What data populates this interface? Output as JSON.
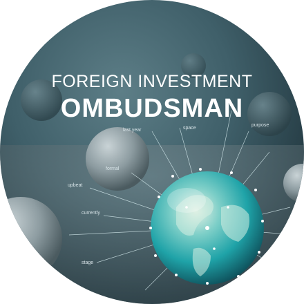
{
  "title": {
    "line1": "FOREIGN INVESTMENT",
    "line2": "OMBUDSMAN"
  },
  "network_labels": {
    "last_year": "last year",
    "space": "space",
    "purpose": "purpose",
    "formal": "formal",
    "upbeat": "upbeat",
    "currently": "currently",
    "stage": "stage"
  },
  "colors": {
    "background_dark": "#22373f",
    "background_light": "#5d7e87",
    "globe_teal": "#1fa3a8",
    "text": "#ffffff"
  }
}
